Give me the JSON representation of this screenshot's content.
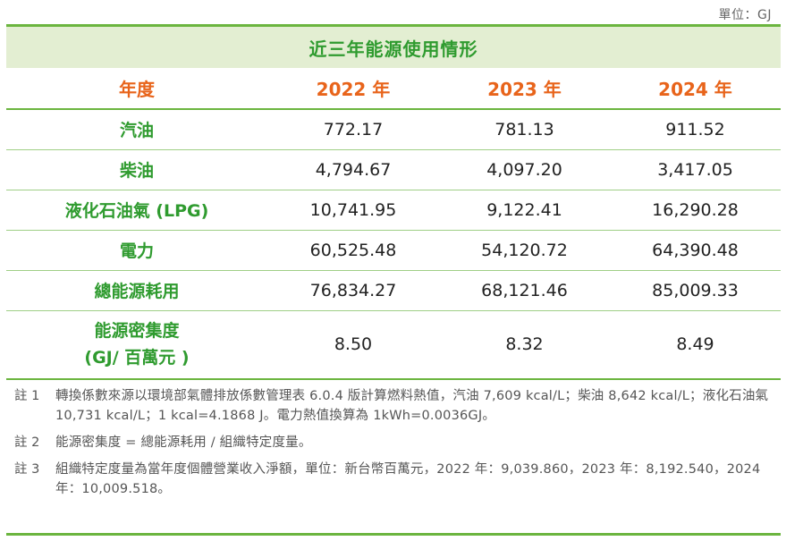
{
  "unit_label": "單位：GJ",
  "table": {
    "title": "近三年能源使用情形",
    "headers": [
      "年度",
      "2022 年",
      "2023 年",
      "2024 年"
    ],
    "rows": [
      {
        "label": "汽油",
        "values": [
          "772.17",
          "781.13",
          "911.52"
        ]
      },
      {
        "label": "柴油",
        "values": [
          "4,794.67",
          "4,097.20",
          "3,417.05"
        ]
      },
      {
        "label": "液化石油氣 (LPG)",
        "values": [
          "10,741.95",
          "9,122.41",
          "16,290.28"
        ]
      },
      {
        "label": "電力",
        "values": [
          "60,525.48",
          "54,120.72",
          "64,390.48"
        ]
      },
      {
        "label": "總能源耗用",
        "values": [
          "76,834.27",
          "68,121.46",
          "85,009.33"
        ]
      },
      {
        "label_line1": "能源密集度",
        "label_line2": "(GJ/ 百萬元 )",
        "values": [
          "8.50",
          "8.32",
          "8.49"
        ]
      }
    ]
  },
  "notes": [
    {
      "label": "註 1",
      "text": "轉換係數來源以環境部氣體排放係數管理表 6.0.4 版計算燃料熱值，汽油 7,609 kcal/L；柴油 8,642 kcal/L；液化石油氣 10,731 kcal/L；1 kcal=4.1868 J。電力熱值換算為 1kWh=0.0036GJ。"
    },
    {
      "label": "註 2",
      "text": "能源密集度 = 總能源耗用 / 組織特定度量。"
    },
    {
      "label": "註 3",
      "text": "組織特定度量為當年度個體營業收入淨額，單位：新台幣百萬元，2022 年：9,039.860，2023 年：8,192.540，2024 年：10,009.518。"
    }
  ],
  "colors": {
    "accent_green": "#6bb53f",
    "label_green": "#2f9b2f",
    "header_orange": "#e8641b",
    "title_bg": "#e3eed2"
  }
}
